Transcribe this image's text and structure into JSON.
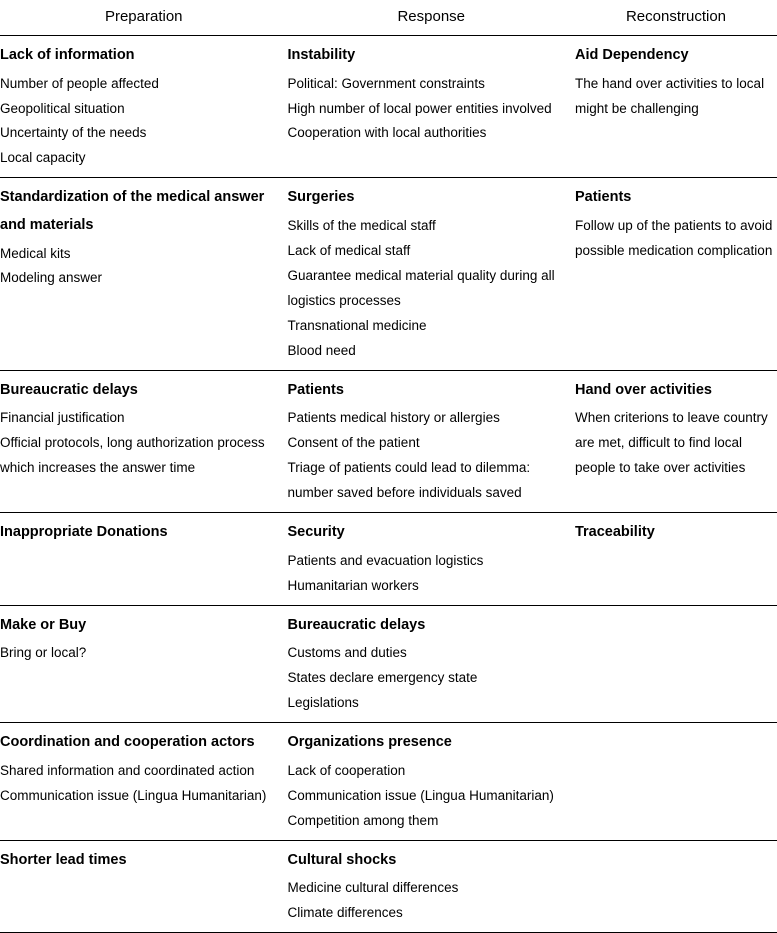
{
  "colors": {
    "background": "#ffffff",
    "text": "#000000",
    "border": "#000000"
  },
  "typography": {
    "header_fontsize": 15,
    "title_fontsize": 14.5,
    "item_fontsize": 13.5,
    "font_family": "Arial, Helvetica, sans-serif"
  },
  "columns": [
    "Preparation",
    "Response",
    "Reconstruction"
  ],
  "rows": [
    {
      "preparation": {
        "title": "Lack of information",
        "items": [
          "Number of people affected",
          "Geopolitical situation",
          "Uncertainty of the needs",
          "Local capacity"
        ]
      },
      "response": {
        "title": "Instability",
        "items": [
          "Political: Government constraints",
          "High number of local power entities involved",
          "Cooperation with local authorities"
        ]
      },
      "reconstruction": {
        "title": "Aid Dependency",
        "items": [
          "The hand over activities to local might be challenging"
        ]
      }
    },
    {
      "preparation": {
        "title": "Standardization of the medical answer and materials",
        "items": [
          "Medical kits",
          "Modeling answer"
        ]
      },
      "response": {
        "title": "Surgeries",
        "items": [
          "Skills of the medical staff",
          "Lack of medical staff",
          "Guarantee medical material quality during all logistics processes",
          "Transnational medicine",
          "Blood need"
        ]
      },
      "reconstruction": {
        "title": "Patients",
        "items": [
          "Follow up of the patients to avoid possible medication complication"
        ]
      }
    },
    {
      "preparation": {
        "title": "Bureaucratic delays",
        "items": [
          "Financial justification",
          "Official protocols, long authorization process which increases the answer time"
        ]
      },
      "response": {
        "title": "Patients",
        "items": [
          "Patients medical history or allergies",
          "Consent of the patient",
          "Triage of patients could lead to dilemma: number saved before individuals saved"
        ]
      },
      "reconstruction": {
        "title": "Hand over activities",
        "items": [
          "When criterions to leave country are met, difficult to find local people to take over activities"
        ]
      }
    },
    {
      "preparation": {
        "title": "Inappropriate Donations",
        "items": []
      },
      "response": {
        "title": "Security",
        "items": [
          "Patients and evacuation logistics",
          "Humanitarian workers"
        ]
      },
      "reconstruction": {
        "title": "Traceability",
        "items": []
      }
    },
    {
      "preparation": {
        "title": "Make or Buy",
        "items": [
          "Bring or local?"
        ]
      },
      "response": {
        "title": "Bureaucratic delays",
        "items": [
          "Customs and duties",
          "States declare emergency state",
          "Legislations"
        ]
      },
      "reconstruction": {
        "title": "",
        "items": []
      }
    },
    {
      "preparation": {
        "title": "Coordination and cooperation actors",
        "items": [
          "Shared information and coordinated action",
          "Communication issue (Lingua Humanitarian)"
        ]
      },
      "response": {
        "title": "Organizations presence",
        "items": [
          "Lack of cooperation",
          "Communication issue (Lingua Humanitarian)",
          "Competition among them"
        ]
      },
      "reconstruction": {
        "title": "",
        "items": []
      }
    },
    {
      "preparation": {
        "title": "Shorter lead times",
        "items": []
      },
      "response": {
        "title": "Cultural shocks",
        "items": [
          "Medicine cultural differences",
          "Climate differences"
        ]
      },
      "reconstruction": {
        "title": "",
        "items": []
      }
    }
  ]
}
